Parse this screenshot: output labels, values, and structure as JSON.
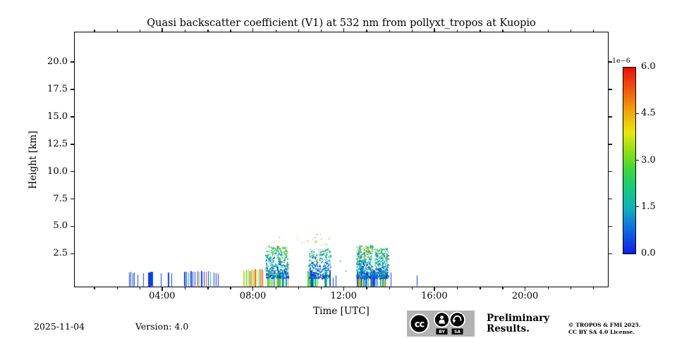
{
  "chart_data": {
    "type": "scatter",
    "title": "Quasi backscatter coefficient (V1) at 532 nm from pollyxt_tropos at Kuopio",
    "xlabel": "Time [UTC]",
    "ylabel": "Height [km]",
    "xlim_hours": [
      0.15,
      23.65
    ],
    "ylim_km": [
      -0.5,
      22.7
    ],
    "grid": false,
    "x_major_ticks": [
      {
        "hour": 4,
        "label": "04:00"
      },
      {
        "hour": 8,
        "label": "08:00"
      },
      {
        "hour": 12,
        "label": "12:00"
      },
      {
        "hour": 16,
        "label": "16:00"
      },
      {
        "hour": 20,
        "label": "20:00"
      }
    ],
    "x_minor_tick_hours": [
      1,
      2,
      3,
      5,
      6,
      7,
      9,
      10,
      11,
      13,
      14,
      15,
      17,
      18,
      19,
      21,
      22,
      23
    ],
    "y_ticks": [
      {
        "km": 2.5,
        "label": "2.5"
      },
      {
        "km": 5.0,
        "label": "5.0"
      },
      {
        "km": 7.5,
        "label": "7.5"
      },
      {
        "km": 10.0,
        "label": "10.0"
      },
      {
        "km": 12.5,
        "label": "12.5"
      },
      {
        "km": 15.0,
        "label": "15.0"
      },
      {
        "km": 17.5,
        "label": "17.5"
      },
      {
        "km": 20.0,
        "label": "20.0"
      }
    ],
    "colorbar": {
      "scale_label": "1e−6",
      "vmin": 0,
      "vmax": 6,
      "ticks": [
        {
          "value": 6.0,
          "label": "6.0"
        },
        {
          "value": 4.5,
          "label": "4.5"
        },
        {
          "value": 3.0,
          "label": "3.0"
        },
        {
          "value": 1.5,
          "label": "1.5"
        },
        {
          "value": 0.0,
          "label": "0.0"
        }
      ],
      "colormap_stops": [
        [
          0.0,
          "#0d1fdf"
        ],
        [
          0.8,
          "#0e6de2"
        ],
        [
          1.5,
          "#10b4b8"
        ],
        [
          2.1,
          "#17c97e"
        ],
        [
          2.7,
          "#3dd63a"
        ],
        [
          3.3,
          "#8fdf16"
        ],
        [
          3.9,
          "#e7e70f"
        ],
        [
          4.6,
          "#f4a409"
        ],
        [
          5.3,
          "#f1560e"
        ],
        [
          6.0,
          "#e61106"
        ]
      ]
    },
    "ground_bars_columns": "[hour_utc, top_height_km, value_1e-6, width_px]",
    "ground_bars": [
      [
        2.55,
        0.78,
        0.35,
        1
      ],
      [
        2.63,
        0.82,
        0.3,
        1
      ],
      [
        2.7,
        0.72,
        0.45,
        1
      ],
      [
        2.78,
        0.76,
        0.3,
        1
      ],
      [
        2.92,
        0.62,
        0.35,
        1
      ],
      [
        3.17,
        0.72,
        0.4,
        1
      ],
      [
        3.44,
        0.8,
        0.3,
        3
      ],
      [
        3.54,
        0.82,
        0.35,
        4
      ],
      [
        3.95,
        0.75,
        0.35,
        1
      ],
      [
        4.28,
        0.8,
        0.3,
        2
      ],
      [
        4.41,
        0.72,
        0.4,
        1
      ],
      [
        5.0,
        0.82,
        0.35,
        2
      ],
      [
        5.09,
        0.88,
        0.3,
        1
      ],
      [
        5.17,
        0.8,
        1.5,
        1
      ],
      [
        5.27,
        0.9,
        0.3,
        2
      ],
      [
        5.36,
        0.86,
        0.35,
        1
      ],
      [
        5.46,
        0.82,
        0.3,
        1
      ],
      [
        5.56,
        0.9,
        0.45,
        1
      ],
      [
        5.64,
        0.86,
        4.6,
        1
      ],
      [
        5.73,
        0.92,
        0.3,
        2
      ],
      [
        5.84,
        0.82,
        0.35,
        1
      ],
      [
        5.94,
        0.88,
        5.5,
        1
      ],
      [
        6.03,
        0.9,
        0.35,
        1
      ],
      [
        6.12,
        0.82,
        2.2,
        1
      ],
      [
        6.28,
        0.76,
        0.35,
        1
      ],
      [
        6.37,
        0.7,
        0.3,
        1
      ],
      [
        6.47,
        0.66,
        0.35,
        1
      ],
      [
        7.62,
        0.92,
        3.6,
        2
      ],
      [
        7.71,
        0.96,
        2.3,
        1
      ],
      [
        7.79,
        1.02,
        3.9,
        2
      ],
      [
        7.87,
        0.9,
        0.5,
        1
      ],
      [
        7.95,
        1.06,
        4.4,
        2
      ],
      [
        8.03,
        1.0,
        3.1,
        1
      ],
      [
        8.11,
        1.12,
        5.2,
        2
      ],
      [
        8.19,
        1.02,
        3.8,
        1
      ],
      [
        8.27,
        1.06,
        1.9,
        1
      ],
      [
        8.35,
        1.12,
        4.8,
        2
      ],
      [
        8.43,
        1.02,
        5.6,
        1
      ],
      [
        11.55,
        0.35,
        0.4,
        1
      ],
      [
        11.68,
        0.5,
        0.3,
        1
      ],
      [
        13.32,
        1.05,
        0.45,
        1
      ],
      [
        14.08,
        0.78,
        0.4,
        1
      ],
      [
        15.25,
        0.5,
        0.4,
        1
      ]
    ],
    "speckle_clusters": [
      {
        "t0": 8.55,
        "t1": 9.55,
        "h_top": 3.25,
        "n": 620,
        "base_density": 0.8,
        "v_bias": 1.0
      },
      {
        "t0": 10.45,
        "t1": 11.4,
        "h_top": 2.95,
        "n": 420,
        "base_density": 0.55,
        "v_bias": 0.72
      },
      {
        "t0": 12.55,
        "t1": 13.27,
        "h_top": 3.3,
        "n": 620,
        "base_density": 0.85,
        "v_bias": 1.0
      },
      {
        "t0": 13.36,
        "t1": 13.95,
        "h_top": 3.05,
        "n": 500,
        "base_density": 0.8,
        "v_bias": 0.95
      }
    ],
    "high_altitude_dots": {
      "t0": 9.85,
      "t1": 11.45,
      "h0": 3.35,
      "h1": 4.45,
      "n": 24,
      "v0": 2.2,
      "v1": 6.0
    },
    "isolated_dots": [
      [
        11.83,
        1.9,
        0.6
      ],
      [
        12.08,
        0.95,
        0.9
      ],
      [
        8.92,
        3.62,
        3.3
      ],
      [
        9.15,
        4.05,
        4.8
      ]
    ]
  },
  "footer": {
    "date": "2025-11-04",
    "version": "Version: 4.0",
    "preliminary_line1": "Preliminary",
    "preliminary_line2": "Results.",
    "copyright_line1": "© TROPOS & FMI 2025.",
    "copyright_line2": "CC BY SA 4.0 License.",
    "license_badge": {
      "cc": "cc",
      "by": "BY",
      "sa": "SA"
    }
  },
  "colors": {
    "axis": "#1a1a1a",
    "text": "#000000",
    "background": "#ffffff",
    "preliminary_red": "#f43333",
    "badge_bg": "#b3b3b3"
  }
}
